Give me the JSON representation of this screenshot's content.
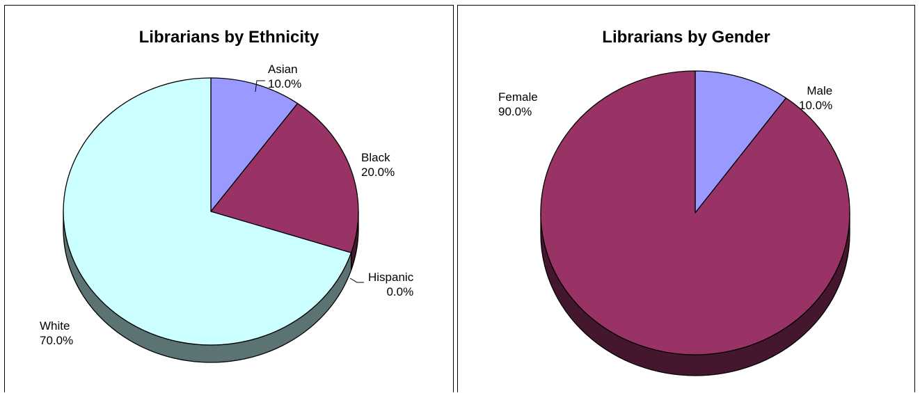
{
  "chart_data": [
    {
      "type": "pie",
      "title": "Librarians by Ethnicity",
      "slices": [
        {
          "name": "Asian",
          "value": 10.0,
          "label": "10.0%",
          "color": "#9999ff"
        },
        {
          "name": "Black",
          "value": 20.0,
          "label": "20.0%",
          "color": "#993366"
        },
        {
          "name": "Hispanic",
          "value": 0.0,
          "label": "0.0%",
          "color": "#ffffcc"
        },
        {
          "name": "White",
          "value": 70.0,
          "label": "70.0%",
          "color": "#ccffff"
        }
      ],
      "style": "3d",
      "legend": "none"
    },
    {
      "type": "pie",
      "title": "Librarians by Gender",
      "slices": [
        {
          "name": "Male",
          "value": 10.0,
          "label": "10.0%",
          "color": "#9999ff"
        },
        {
          "name": "Female",
          "value": 90.0,
          "label": "90.0%",
          "color": "#993366"
        }
      ],
      "style": "3d",
      "legend": "none"
    }
  ]
}
